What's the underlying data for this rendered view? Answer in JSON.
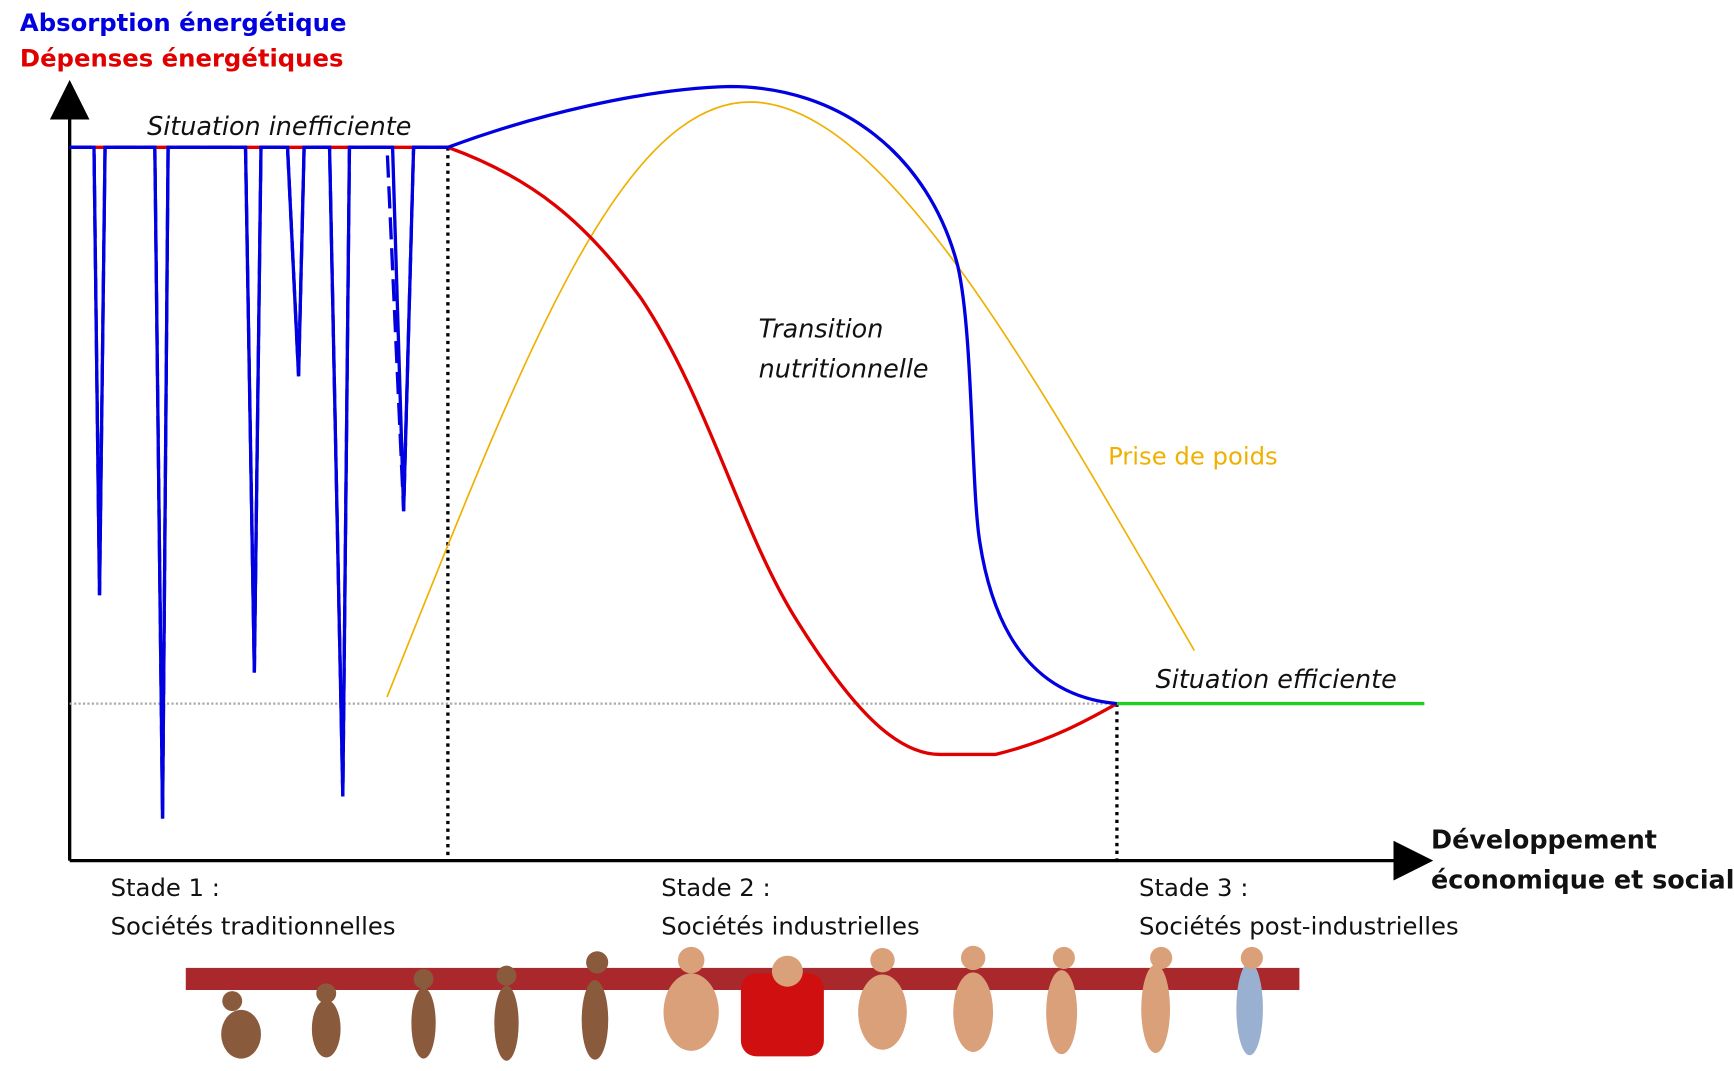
{
  "legend": {
    "intake": "Absorption énergétique",
    "expenditure": "Dépenses énergétiques"
  },
  "annotations": {
    "inefficient": "Situation inefficiente",
    "transition": [
      "Transition",
      "nutritionnelle"
    ],
    "weight_gain": "Prise de poids",
    "efficient": "Situation efficiente"
  },
  "x_axis_label": [
    "Développement",
    "économique et social"
  ],
  "stages": [
    {
      "label": "Stade 1 :",
      "name": "Sociétés traditionnelles"
    },
    {
      "label": "Stade 2 :",
      "name": "Sociétés industrielles"
    },
    {
      "label": "Stade 3 :",
      "name": "Sociétés post-industrielles"
    }
  ]
}
